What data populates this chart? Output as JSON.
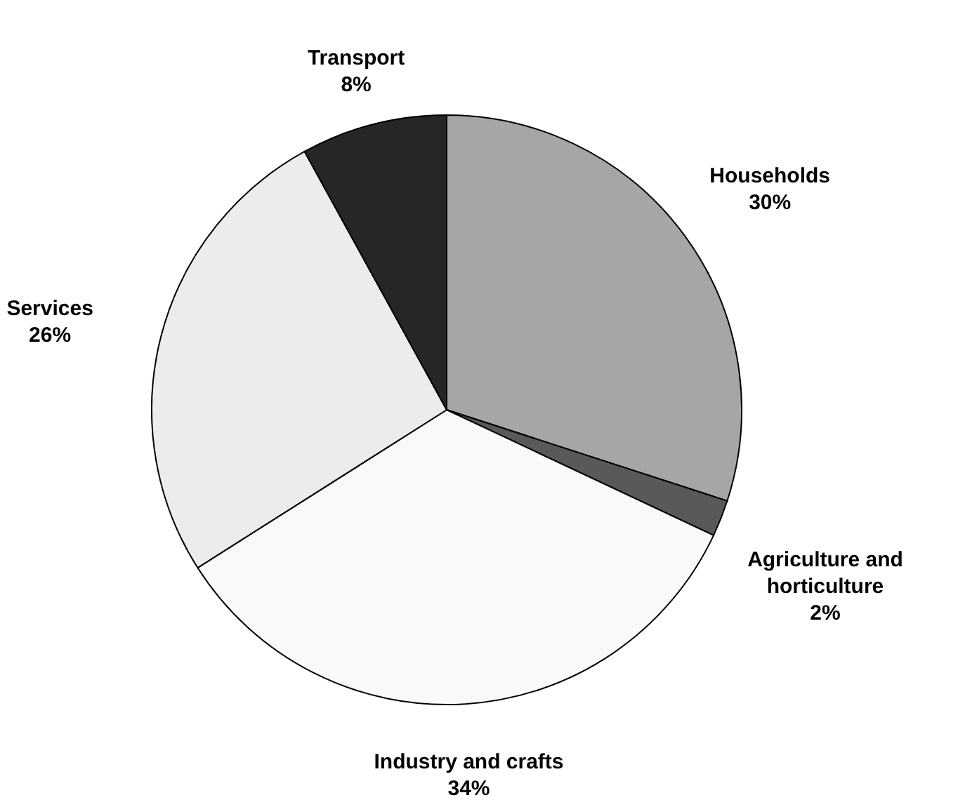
{
  "chart_data": {
    "type": "pie",
    "categories": [
      "Households",
      "Agriculture and horticulture",
      "Industry and crafts",
      "Services",
      "Transport"
    ],
    "values": [
      30,
      2,
      34,
      26,
      8
    ],
    "value_labels": [
      "30%",
      "2%",
      "34%",
      "26%",
      "8%"
    ],
    "colors": [
      "#a6a6a6",
      "#595959",
      "#f9f9f9",
      "#ececec",
      "#262626"
    ]
  }
}
